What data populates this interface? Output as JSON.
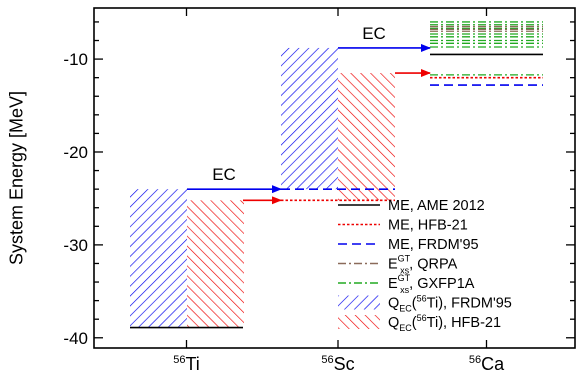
{
  "chart_data": {
    "type": "level-scheme",
    "ylabel": "System Energy [MeV]",
    "ylim": [
      -41.1,
      -4.5
    ],
    "y_ticks": [
      -10,
      -20,
      -30,
      -40
    ],
    "y_tick_labels": [
      "-10",
      "-20",
      "-30",
      "-40"
    ],
    "categories": [
      "⁵⁶Ti",
      "⁵⁶Sc",
      "⁵⁶Ca"
    ],
    "category_parts": [
      {
        "mass": "56",
        "symbol": "Ti"
      },
      {
        "mass": "56",
        "symbol": "Sc"
      },
      {
        "mass": "56",
        "symbol": "Ca"
      }
    ],
    "ec_label": "EC",
    "ground_state_levels": [
      {
        "nucleus": "⁵⁶Ti",
        "ame2012": -38.9
      },
      {
        "nucleus": "⁵⁶Sc",
        "hfb21": -25.2,
        "frdm95": -24.0
      },
      {
        "nucleus": "⁵⁶Ca",
        "ame2012": -9.5,
        "hfb21": -12.0,
        "frdm95": -12.8
      }
    ],
    "q_ec_ranges": [
      {
        "name": "Q_EC(56Ti), FRDM'95",
        "from_nucleus": "⁵⁶Ti",
        "bottom": -38.9,
        "top": -24.0
      },
      {
        "name": "Q_EC(56Ti), HFB-21",
        "from_nucleus": "⁵⁶Ti",
        "bottom": -38.9,
        "top": -25.2
      },
      {
        "name": "Q_EC(56Sc), FRDM'95",
        "from_nucleus": "⁵⁶Sc",
        "bottom": -24.0,
        "top": -8.8
      },
      {
        "name": "Q_EC(56Sc), HFB-21",
        "from_nucleus": "⁵⁶Sc",
        "bottom": -25.2,
        "top": -11.5
      }
    ],
    "ec_transitions": [
      {
        "from": "⁵⁶Ti",
        "to": "⁵⁶Sc",
        "energy": -24.0,
        "color": "#0000ee",
        "label": "EC"
      },
      {
        "from": "⁵⁶Ti",
        "to": "⁵⁶Sc",
        "energy": -25.2,
        "color": "#ee0000"
      },
      {
        "from": "⁵⁶Sc",
        "to": "⁵⁶Ca",
        "energy": -8.8,
        "color": "#0000ee",
        "label": "EC"
      },
      {
        "from": "⁵⁶Sc",
        "to": "⁵⁶Ca",
        "energy": -11.5,
        "color": "#ee0000"
      }
    ],
    "excited_states": {
      "nucleus": "⁵⁶Ca",
      "qrpa": [
        -6.5,
        -6.8,
        -7.0
      ],
      "gxfp1a": [
        -6.0,
        -6.3,
        -6.7,
        -7.3,
        -7.6,
        -8.0,
        -8.3,
        -8.7,
        -11.7
      ]
    },
    "legend_position": "bottom-right",
    "legend": [
      {
        "label": "ME, AME 2012",
        "style": "solid",
        "color": "#000000"
      },
      {
        "label": "ME, HFB-21",
        "style": "dotted",
        "color": "#ee0000"
      },
      {
        "label": "ME, FRDM'95",
        "style": "dashed",
        "color": "#0000ee"
      },
      {
        "label_sup": "GT",
        "label_sub": "xs",
        "label_main": "E",
        "label_rest": ", QRPA",
        "style": "dash-dot",
        "color": "#8b6b5a"
      },
      {
        "label_sup": "GT",
        "label_sub": "xs",
        "label_main": "E",
        "label_rest": ", GXFP1A",
        "style": "dash-dot",
        "color": "#22aa22"
      },
      {
        "label_main": "Q",
        "label_sub": "EC",
        "label_paren_sup": "56",
        "label_paren_main": "Ti",
        "label_rest": ", FRDM'95",
        "style": "hatch-blue",
        "color": "#0000ee"
      },
      {
        "label_main": "Q",
        "label_sub": "EC",
        "label_paren_sup": "56",
        "label_paren_main": "Ti",
        "label_rest": ", HFB-21",
        "style": "hatch-red",
        "color": "#ee0000"
      }
    ],
    "colors": {
      "blue": "#0000ee",
      "red": "#ee0000",
      "black": "#000000",
      "green": "#22aa22",
      "brown": "#8b6b5a"
    }
  }
}
